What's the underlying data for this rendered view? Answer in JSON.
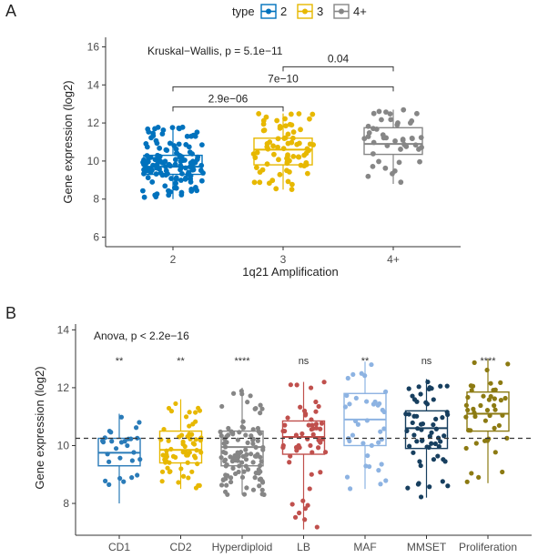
{
  "chart_data": [
    {
      "panel": "A",
      "type": "boxplot",
      "legend": {
        "title": "type",
        "placement": "top",
        "entries": [
          "2",
          "3",
          "4+"
        ]
      },
      "xlabel": "1q21 Amplification",
      "ylabel": "Gene expression (log2)",
      "ylim": [
        5.5,
        16.5
      ],
      "yticks": [
        6,
        8,
        10,
        12,
        14,
        16
      ],
      "test_label": "Kruskal−Wallis, p = 5.1e−11",
      "groups": [
        {
          "name": "2",
          "color": "#0072BD",
          "q1": 9.3,
          "median": 9.7,
          "q3": 10.3,
          "whisker_low": 8.0,
          "whisker_high": 11.8,
          "n": 140
        },
        {
          "name": "3",
          "color": "#E7B800",
          "q1": 9.8,
          "median": 10.6,
          "q3": 11.2,
          "whisker_low": 8.5,
          "whisker_high": 12.5,
          "n": 75
        },
        {
          "name": "4+",
          "color": "#868686",
          "q1": 10.35,
          "median": 10.9,
          "q3": 11.75,
          "whisker_low": 8.8,
          "whisker_high": 12.7,
          "n": 45
        }
      ],
      "comparisons": [
        {
          "from": "2",
          "to": "3",
          "label": "2.9e−06",
          "y": 12.85
        },
        {
          "from": "2",
          "to": "4+",
          "label": "7e−10",
          "y": 13.9
        },
        {
          "from": "3",
          "to": "4+",
          "label": "0.04",
          "y": 14.95
        }
      ]
    },
    {
      "panel": "B",
      "type": "boxplot",
      "ylabel": "Gene expression (log2)",
      "ylim": [
        6.9,
        14.2
      ],
      "yticks": [
        8,
        10,
        12,
        14
      ],
      "test_label": "Anova, p < 2.2e−16",
      "reference_line": 10.25,
      "groups": [
        {
          "name": "CD1",
          "color": "#2A7BB8",
          "q1": 9.3,
          "median": 9.75,
          "q3": 10.25,
          "whisker_low": 8.0,
          "whisker_high": 11.1,
          "n": 28,
          "sig": "**"
        },
        {
          "name": "CD2",
          "color": "#E7B800",
          "q1": 9.4,
          "median": 9.85,
          "q3": 10.5,
          "whisker_low": 8.5,
          "whisker_high": 11.6,
          "n": 65,
          "sig": "**"
        },
        {
          "name": "Hyperdiploid",
          "color": "#868686",
          "q1": 9.3,
          "median": 9.95,
          "q3": 10.5,
          "whisker_low": 8.3,
          "whisker_high": 12.0,
          "n": 110,
          "sig": "****"
        },
        {
          "name": "LB",
          "color": "#C0504D",
          "q1": 9.7,
          "median": 10.3,
          "q3": 10.85,
          "whisker_low": 7.1,
          "whisker_high": 12.2,
          "n": 55,
          "sig": "ns"
        },
        {
          "name": "MAF",
          "color": "#8DB3E2",
          "q1": 10.0,
          "median": 10.9,
          "q3": 11.8,
          "whisker_low": 8.5,
          "whisker_high": 12.9,
          "n": 38,
          "sig": "**"
        },
        {
          "name": "MMSET",
          "color": "#173F5F",
          "q1": 9.9,
          "median": 10.6,
          "q3": 11.2,
          "whisker_low": 8.2,
          "whisker_high": 12.3,
          "n": 60,
          "sig": "ns"
        },
        {
          "name": "Proliferation",
          "color": "#8C7A12",
          "q1": 10.5,
          "median": 11.1,
          "q3": 11.85,
          "whisker_low": 8.7,
          "whisker_high": 13.0,
          "n": 45,
          "sig": "****"
        }
      ]
    }
  ]
}
